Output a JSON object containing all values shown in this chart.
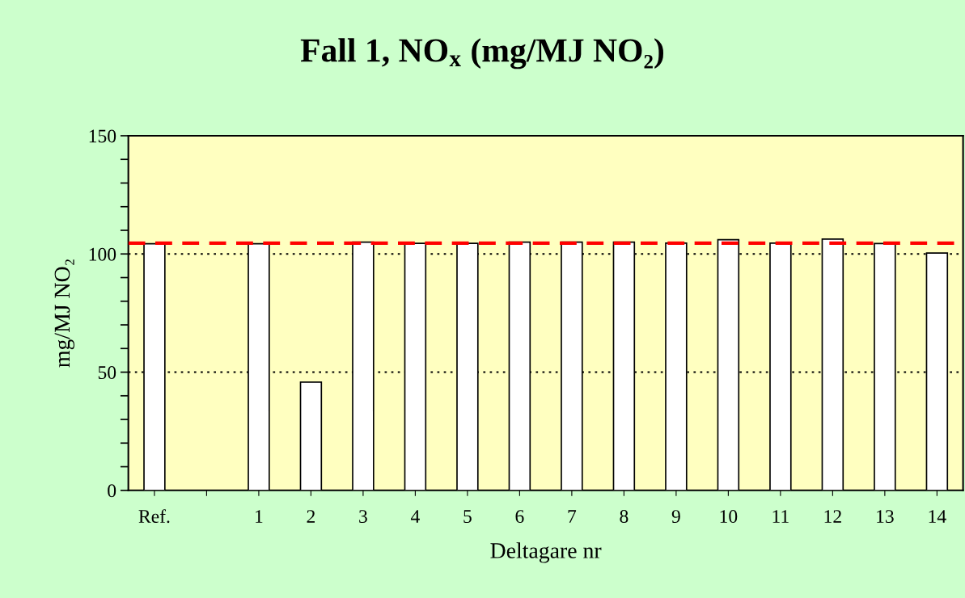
{
  "chart_data": {
    "type": "bar",
    "title": "Fall 1, NO$_{x}$ (mg/MJ NO₂)",
    "xlabel": "Deltagare nr",
    "ylabel": "mg/MJ NO₂",
    "categories": [
      "Ref.",
      null,
      "1",
      "2",
      "3",
      "4",
      "5",
      "6",
      "7",
      "8",
      "9",
      "10",
      "11",
      "12",
      "13",
      "14"
    ],
    "values": [
      104.3,
      null,
      104.3,
      45.8,
      105,
      104.5,
      104.5,
      105,
      105,
      105,
      104.6,
      106,
      104.6,
      106.3,
      104.4,
      100.4
    ],
    "color": "#ffffff",
    "ylim": [
      0,
      150
    ],
    "yticks": [
      0,
      {
        "value": 10,
        "label": null
      },
      {
        "value": 20,
        "label": null
      },
      {
        "value": 30,
        "label": null
      },
      {
        "value": 40,
        "label": null
      },
      50,
      {
        "value": 60,
        "label": null
      },
      {
        "value": 70,
        "label": null
      },
      {
        "value": 80,
        "label": null
      },
      {
        "value": 90,
        "label": null
      },
      100,
      {
        "value": 110,
        "label": null
      },
      {
        "value": 120,
        "label": null
      },
      {
        "value": 130,
        "label": null
      },
      {
        "value": 140,
        "label": null
      },
      150
    ],
    "grid": "y",
    "ref_lines": [
      {
        "axis": "y",
        "value": 104.6,
        "color": "#ff0000",
        "line_style": "dashed"
      }
    ]
  }
}
